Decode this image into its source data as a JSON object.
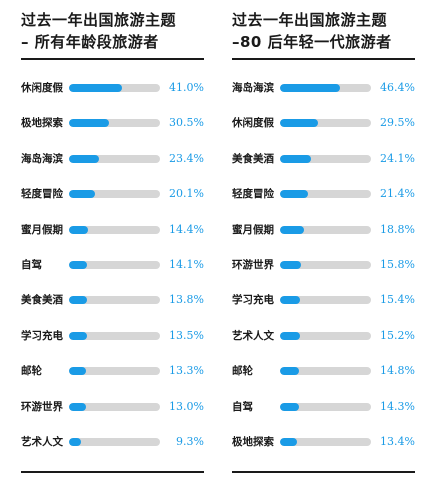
{
  "colors": {
    "accent": "#1a9be6",
    "track": "#d6d6d6",
    "text": "#1a1a1a"
  },
  "chart_data": [
    {
      "type": "bar",
      "orientation": "horizontal",
      "title": "过去一年出国旅游主题",
      "subtitle": "– 所有年龄段旅游者",
      "xlim": [
        0,
        70
      ],
      "categories": [
        "休闲度假",
        "极地探索",
        "海岛海滨",
        "轻度冒险",
        "蜜月假期",
        "自驾",
        "美食美酒",
        "学习充电",
        "邮轮",
        "环游世界",
        "艺术人文"
      ],
      "values": [
        41.0,
        30.5,
        23.4,
        20.1,
        14.4,
        14.1,
        13.8,
        13.5,
        13.3,
        13.0,
        9.3
      ],
      "value_labels": [
        "41.0%",
        "30.5%",
        "23.4%",
        "20.1%",
        "14.4%",
        "14.1%",
        "13.8%",
        "13.5%",
        "13.3%",
        "13.0%",
        "9.3%"
      ]
    },
    {
      "type": "bar",
      "orientation": "horizontal",
      "title": "过去一年出国旅游主题",
      "subtitle": "–80 后年轻一代旅游者",
      "xlim": [
        0,
        70
      ],
      "categories": [
        "海岛海滨",
        "休闲度假",
        "美食美酒",
        "轻度冒险",
        "蜜月假期",
        "环游世界",
        "学习充电",
        "艺术人文",
        "邮轮",
        "自驾",
        "极地探索"
      ],
      "values": [
        46.4,
        29.5,
        24.1,
        21.4,
        18.8,
        15.8,
        15.4,
        15.2,
        14.8,
        14.3,
        13.4
      ],
      "value_labels": [
        "46.4%",
        "29.5%",
        "24.1%",
        "21.4%",
        "18.8%",
        "15.8%",
        "15.4%",
        "15.2%",
        "14.8%",
        "14.3%",
        "13.4%"
      ]
    }
  ]
}
